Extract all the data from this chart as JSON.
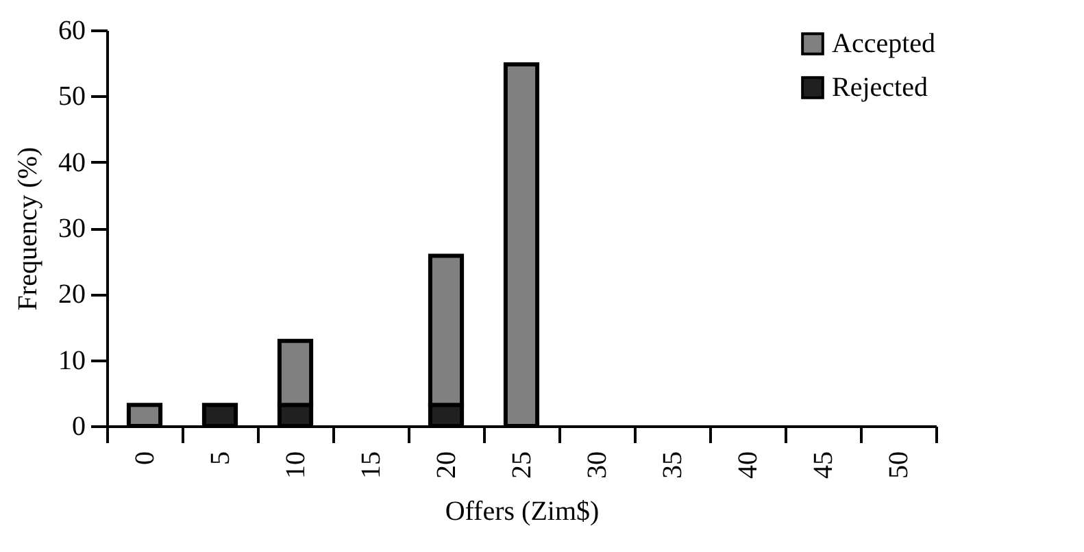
{
  "chart_data": {
    "type": "bar",
    "stacked": true,
    "xlabel": "Offers (Zim$)",
    "ylabel": "Frequency (%)",
    "categories": [
      "0",
      "5",
      "10",
      "15",
      "20",
      "25",
      "30",
      "35",
      "40",
      "45",
      "50"
    ],
    "series": [
      {
        "name": "Rejected",
        "color": "#202020",
        "values": [
          null,
          3.2,
          3.2,
          null,
          3.2,
          null,
          null,
          null,
          null,
          null,
          null
        ]
      },
      {
        "name": "Accepted",
        "color": "#808080",
        "values": [
          3.2,
          null,
          9.7,
          null,
          22.6,
          54.8,
          null,
          null,
          null,
          null,
          null
        ]
      }
    ],
    "ylim": [
      0,
      60
    ],
    "yticks": [
      0,
      10,
      20,
      30,
      40,
      50,
      60
    ],
    "grid": false,
    "legend": "top right"
  }
}
